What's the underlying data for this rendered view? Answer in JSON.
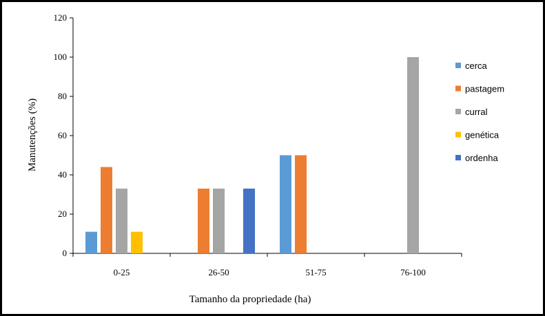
{
  "chart_data": {
    "type": "bar",
    "xlabel": "Tamanho da propriedade (ha)",
    "ylabel": "Manutenções (%)",
    "categories": [
      "0-25",
      "26-50",
      "51-75",
      "76-100"
    ],
    "ylim": [
      0,
      120
    ],
    "yticks": [
      0,
      20,
      40,
      60,
      80,
      100,
      120
    ],
    "grid": false,
    "legend_position": "right",
    "series": [
      {
        "name": "cerca",
        "color": "#5B9BD5",
        "values": [
          11,
          0,
          50,
          0
        ]
      },
      {
        "name": "pastagem",
        "color": "#ED7D31",
        "values": [
          44,
          33,
          50,
          0
        ]
      },
      {
        "name": "curral",
        "color": "#A5A5A5",
        "values": [
          33,
          33,
          0,
          100
        ]
      },
      {
        "name": "genética",
        "color": "#FFC000",
        "values": [
          11,
          0,
          0,
          0
        ]
      },
      {
        "name": "ordenha",
        "color": "#4472C4",
        "values": [
          0,
          33,
          0,
          0
        ]
      }
    ]
  }
}
